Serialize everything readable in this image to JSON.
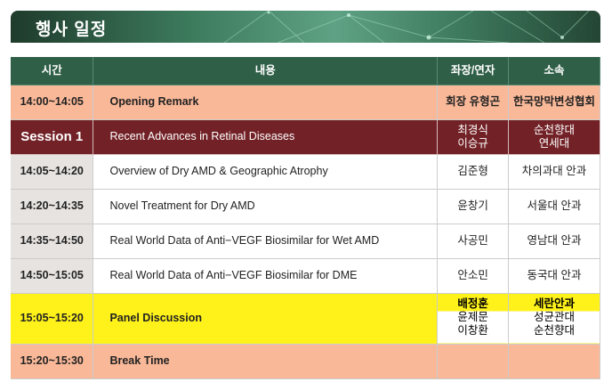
{
  "banner": {
    "title": "행사 일정"
  },
  "columns": [
    "시간",
    "내용",
    "좌장/연자",
    "소속"
  ],
  "rows": [
    {
      "time": "14:00~14:05",
      "content": "Opening Remark",
      "speaker": [
        "회장 유형곤"
      ],
      "affiliation": [
        "한국망막변성협회"
      ],
      "style": "peach"
    },
    {
      "time": "Session 1",
      "content": "Recent Advances in Retinal Diseases",
      "speaker": [
        "최경식",
        "이승규"
      ],
      "affiliation": [
        "순천향대",
        "연세대"
      ],
      "style": "session"
    },
    {
      "time": "14:05~14:20",
      "content": "Overview of Dry AMD & Geographic Atrophy",
      "speaker": [
        "김준형"
      ],
      "affiliation": [
        "차의과대 안과"
      ],
      "style": "normal"
    },
    {
      "time": "14:20~14:35",
      "content": "Novel Treatment for Dry AMD",
      "speaker": [
        "윤창기"
      ],
      "affiliation": [
        "서울대 안과"
      ],
      "style": "normal"
    },
    {
      "time": "14:35~14:50",
      "content": "Real World Data of Anti−VEGF Biosimilar for Wet AMD",
      "speaker": [
        "사공민"
      ],
      "affiliation": [
        "영남대 안과"
      ],
      "style": "normal"
    },
    {
      "time": "14:50~15:05",
      "content": "Real World Data of Anti−VEGF Biosimilar for DME",
      "speaker": [
        "안소민"
      ],
      "affiliation": [
        "동국대 안과"
      ],
      "style": "normal"
    },
    {
      "time": "15:05~15:20",
      "content": "Panel Discussion",
      "speaker": [
        "배정훈",
        "윤제문",
        "이창환"
      ],
      "affiliation": [
        "세란안과",
        "성균관대",
        "순천향대"
      ],
      "style": "panel"
    },
    {
      "time": "15:20~15:30",
      "content": "Break Time",
      "speaker": [],
      "affiliation": [],
      "style": "peach"
    }
  ],
  "colors": {
    "header": "#2f5f47",
    "peach": "#f9b898",
    "session": "#722227",
    "panel": "#fff21a",
    "time_bg": "#e6e3e0"
  }
}
